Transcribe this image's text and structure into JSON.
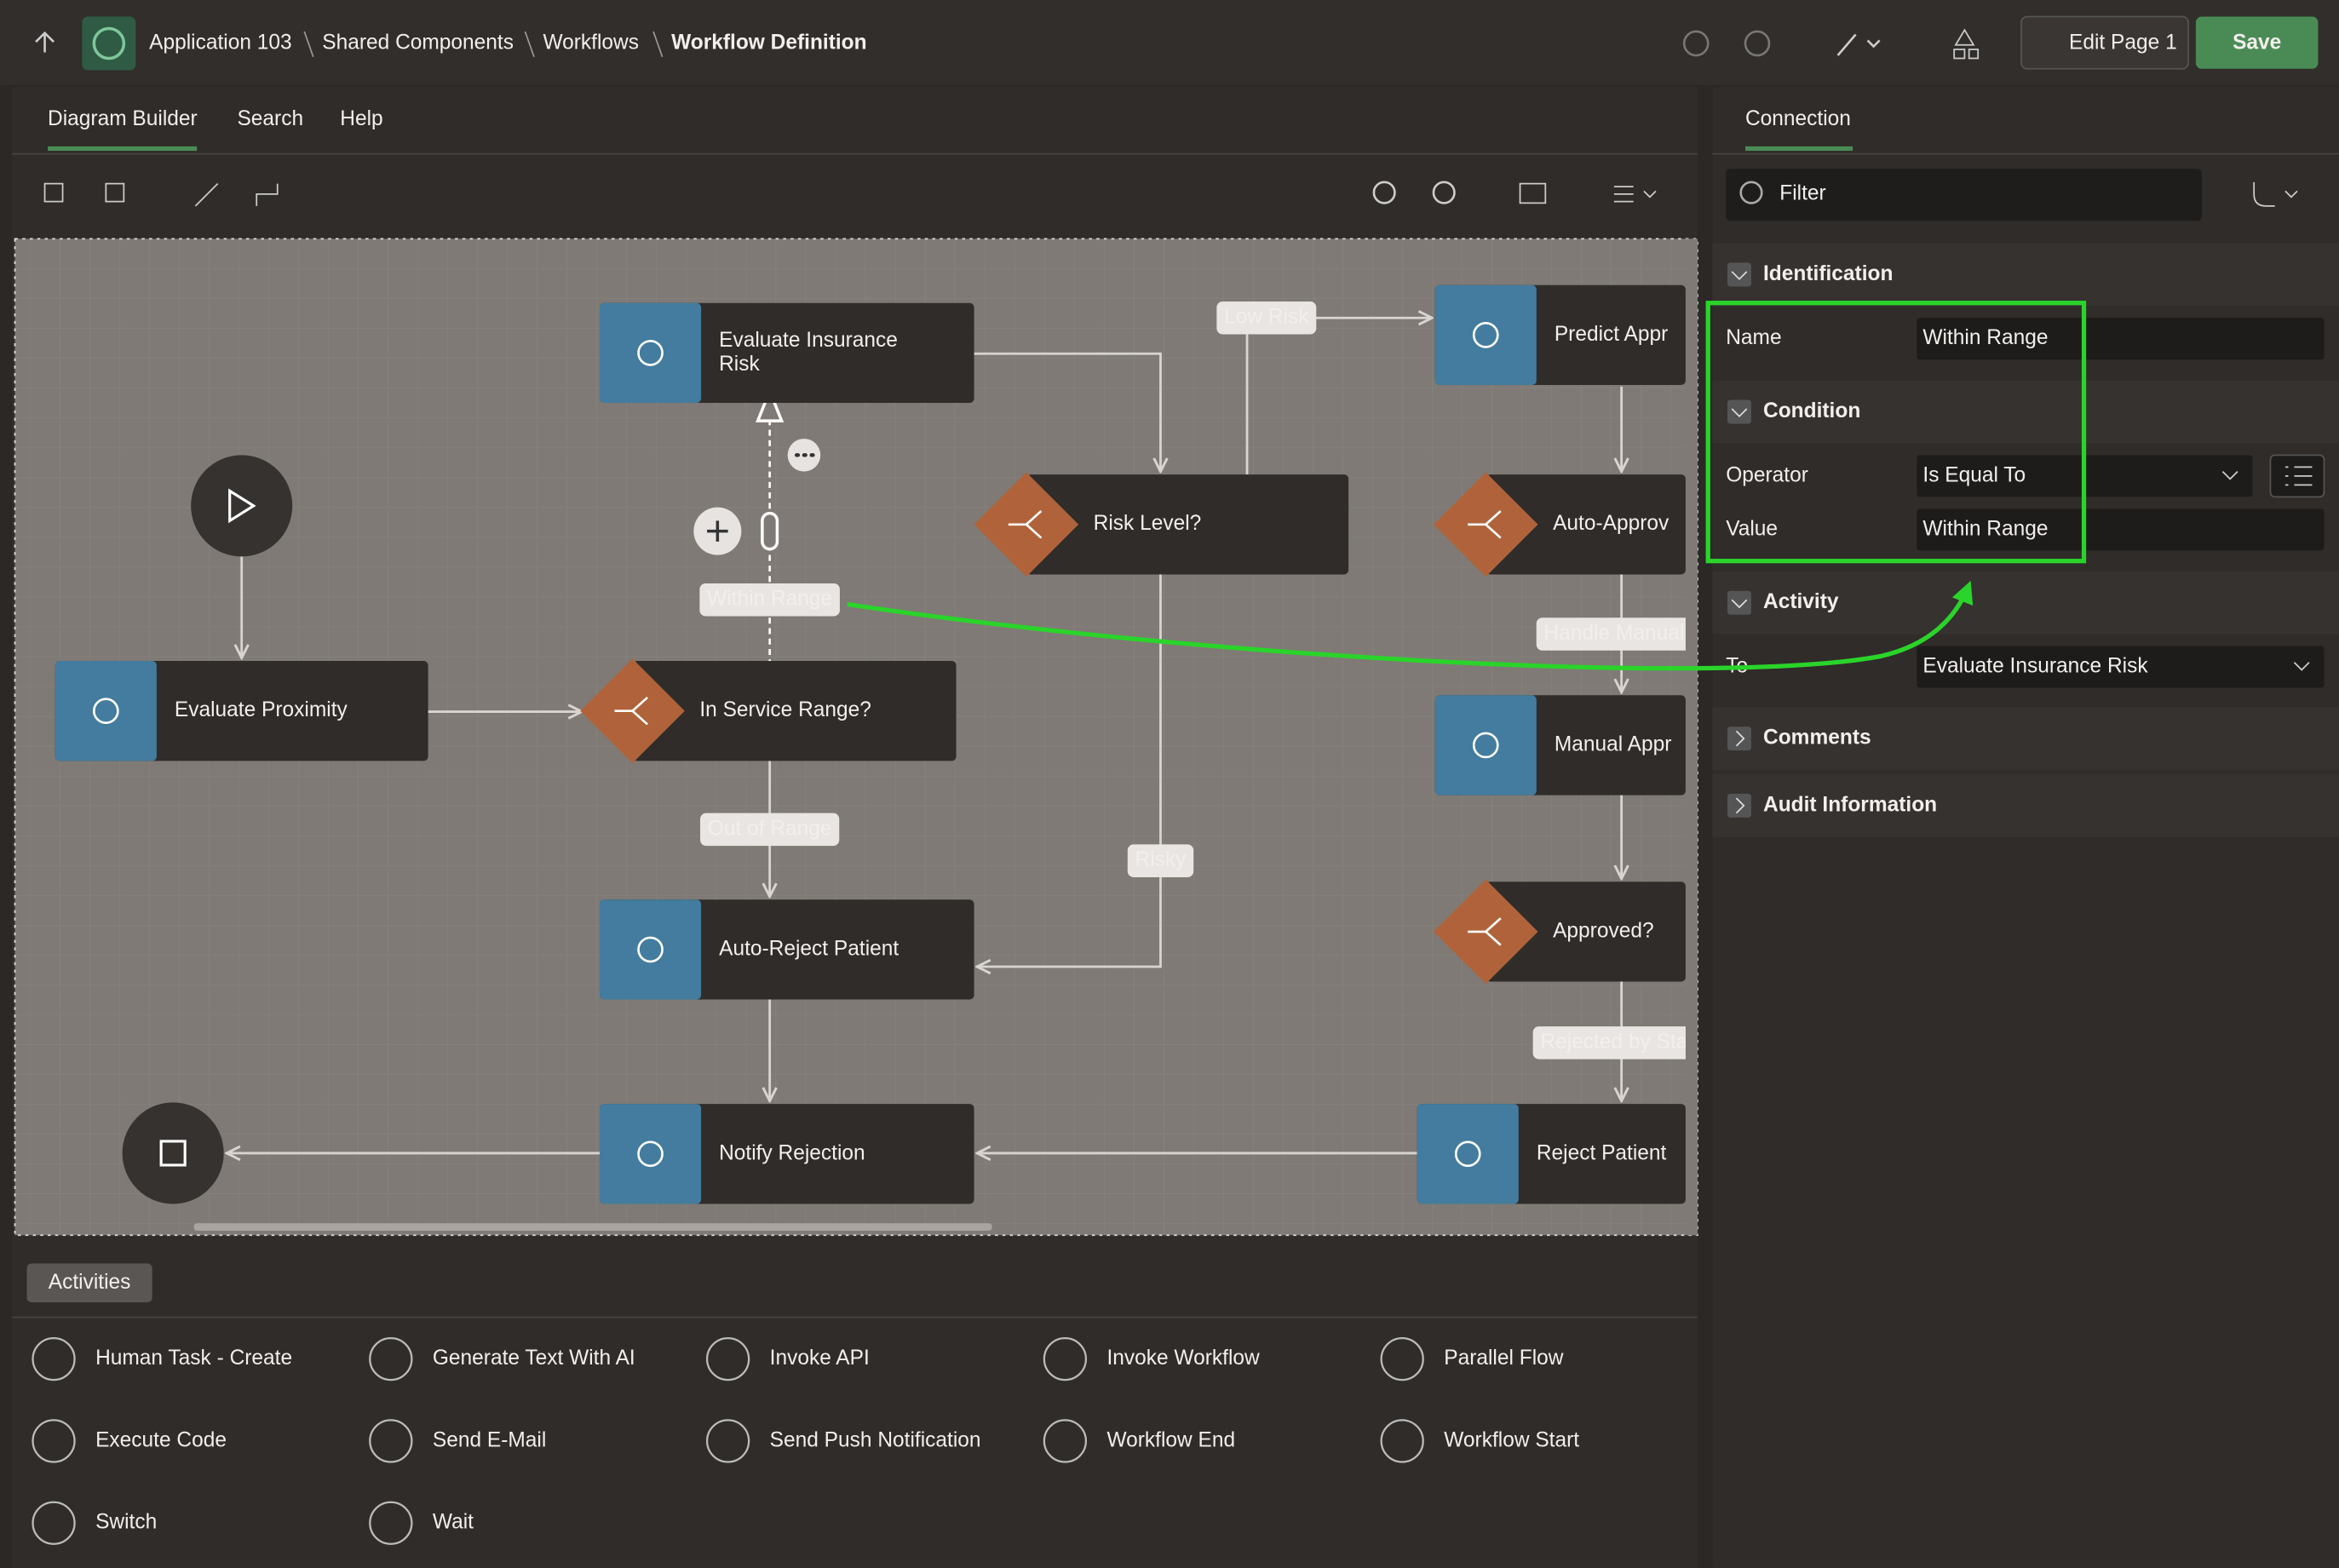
{
  "header": {
    "breadcrumbs": [
      "Application 103",
      "Shared Components",
      "Workflows",
      "Workflow Definition"
    ],
    "edit_page": "Edit Page 1",
    "save": "Save"
  },
  "tabs": [
    "Diagram Builder",
    "Search",
    "Help"
  ],
  "diagram": {
    "nodes": [
      {
        "kind": "activity",
        "lines": [
          "Evaluate Insurance",
          "Risk"
        ]
      },
      {
        "kind": "activity",
        "lines": [
          "Predict Appr"
        ]
      },
      {
        "kind": "switch",
        "lines": [
          "Risk Level?"
        ]
      },
      {
        "kind": "switch",
        "lines": [
          "Auto-Approv"
        ]
      },
      {
        "kind": "activity",
        "lines": [
          "Evaluate Proximity"
        ]
      },
      {
        "kind": "switch",
        "lines": [
          "In Service Range?"
        ]
      },
      {
        "kind": "activity",
        "lines": [
          "Manual Appr"
        ]
      },
      {
        "kind": "switch",
        "lines": [
          "Approved?"
        ]
      },
      {
        "kind": "activity",
        "lines": [
          "Auto-Reject Patient"
        ]
      },
      {
        "kind": "activity",
        "lines": [
          "Notify Rejection"
        ]
      },
      {
        "kind": "activity",
        "lines": [
          "Reject Patient"
        ]
      }
    ],
    "edge_labels": [
      "Low Risk",
      "Within Range",
      "Handle Manual",
      "Out of Range",
      "Risky",
      "Rejected by Sta"
    ]
  },
  "panel": {
    "tab": "Connection",
    "filter_placeholder": "Filter",
    "sections": [
      {
        "title": "Identification",
        "fields": [
          {
            "label": "Name",
            "value": "Within Range"
          }
        ]
      },
      {
        "title": "Condition",
        "fields": [
          {
            "label": "Operator",
            "value": "Is Equal To"
          },
          {
            "label": "Value",
            "value": "Within Range"
          }
        ]
      },
      {
        "title": "Activity",
        "fields": [
          {
            "label": "To",
            "value": "Evaluate Insurance Risk"
          }
        ]
      },
      {
        "title": "Comments"
      },
      {
        "title": "Audit Information"
      }
    ]
  },
  "palette": {
    "tab": "Activities",
    "items": [
      "Human Task - Create",
      "Generate Text With AI",
      "Invoke API",
      "Invoke Workflow",
      "Parallel Flow",
      "Execute Code",
      "Send E-Mail",
      "Send Push Notification",
      "Workflow End",
      "Workflow Start",
      "Switch",
      "Wait"
    ]
  }
}
